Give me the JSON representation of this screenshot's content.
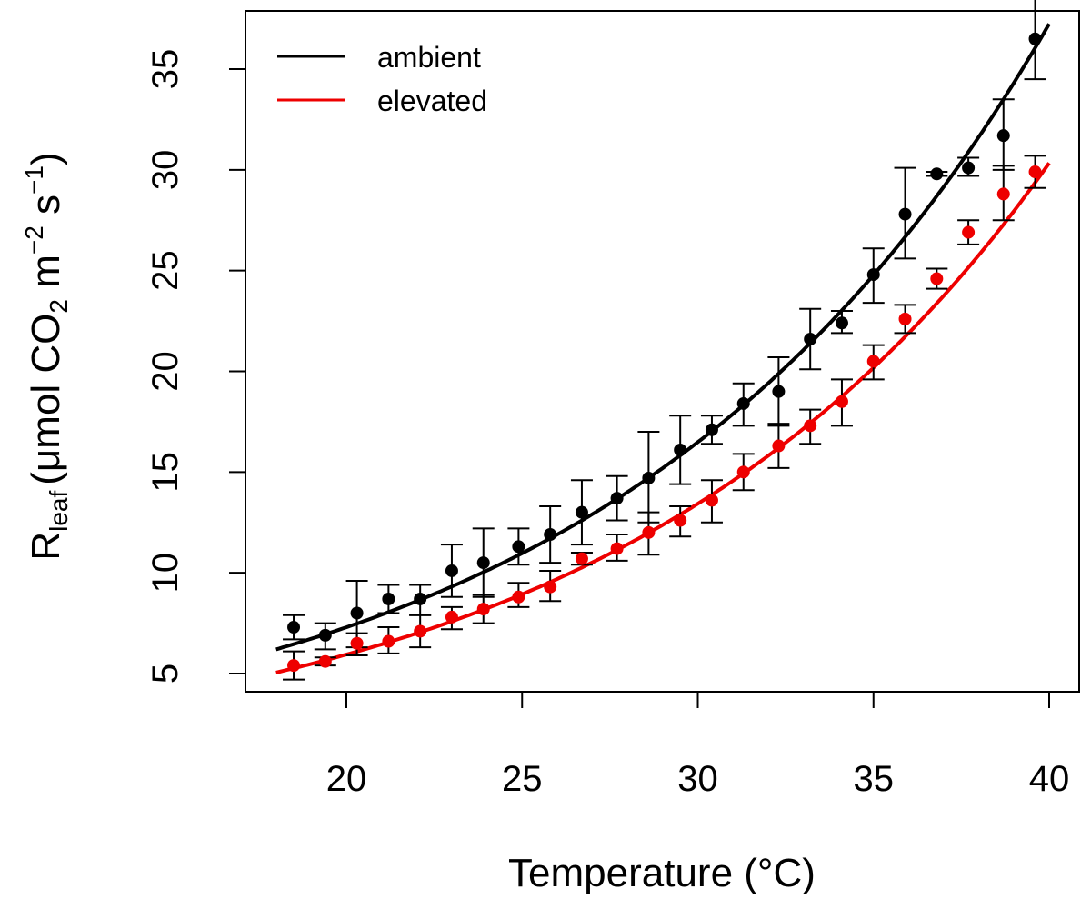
{
  "chart_data": {
    "type": "scatter",
    "xlabel": "Temperature (°C)",
    "ylabel": {
      "main": "R",
      "sub": "leaf",
      "open": "(",
      "text1": "μmol CO",
      "sub2": "2",
      "text2": " m",
      "sup1": "−2",
      "text3": " s",
      "sup2": "−1",
      "close": ")"
    },
    "xlim": [
      18,
      40
    ],
    "ylim": [
      5,
      37
    ],
    "xticks": [
      "20",
      "25",
      "30",
      "35",
      "40"
    ],
    "yticks": [
      "5",
      "10",
      "15",
      "20",
      "25",
      "30",
      "35"
    ],
    "legend": {
      "position": "top-left",
      "entries": [
        "ambient",
        "elevated"
      ]
    },
    "colors": {
      "ambient": "#000000",
      "elevated": "#ee0000"
    },
    "series": [
      {
        "name": "ambient",
        "points": [
          {
            "x": 18.5,
            "y": 7.3,
            "lo": 6.7,
            "hi": 7.9
          },
          {
            "x": 19.4,
            "y": 6.9,
            "lo": 6.2,
            "hi": 7.5
          },
          {
            "x": 20.3,
            "y": 8.0,
            "lo": 6.3,
            "hi": 9.6
          },
          {
            "x": 21.2,
            "y": 8.7,
            "lo": 8.0,
            "hi": 9.4
          },
          {
            "x": 22.1,
            "y": 8.7,
            "lo": 7.9,
            "hi": 9.4
          },
          {
            "x": 23.0,
            "y": 10.1,
            "lo": 8.8,
            "hi": 11.4
          },
          {
            "x": 23.9,
            "y": 10.5,
            "lo": 8.8,
            "hi": 12.2
          },
          {
            "x": 24.9,
            "y": 11.3,
            "lo": 10.4,
            "hi": 12.2
          },
          {
            "x": 25.8,
            "y": 11.9,
            "lo": 10.5,
            "hi": 13.3
          },
          {
            "x": 26.7,
            "y": 13.0,
            "lo": 11.4,
            "hi": 14.6
          },
          {
            "x": 27.7,
            "y": 13.7,
            "lo": 12.6,
            "hi": 14.8
          },
          {
            "x": 28.6,
            "y": 14.7,
            "lo": 12.5,
            "hi": 17.0
          },
          {
            "x": 29.5,
            "y": 16.1,
            "lo": 14.4,
            "hi": 17.8
          },
          {
            "x": 30.4,
            "y": 17.1,
            "lo": 16.4,
            "hi": 17.8
          },
          {
            "x": 31.3,
            "y": 18.4,
            "lo": 17.3,
            "hi": 19.4
          },
          {
            "x": 32.3,
            "y": 19.0,
            "lo": 17.3,
            "hi": 20.7
          },
          {
            "x": 33.2,
            "y": 21.6,
            "lo": 20.1,
            "hi": 23.1
          },
          {
            "x": 34.1,
            "y": 22.4,
            "lo": 21.9,
            "hi": 23.0
          },
          {
            "x": 35.0,
            "y": 24.8,
            "lo": 23.4,
            "hi": 26.1
          },
          {
            "x": 35.9,
            "y": 27.8,
            "lo": 25.6,
            "hi": 30.1
          },
          {
            "x": 36.8,
            "y": 29.8,
            "lo": 29.7,
            "hi": 29.9
          },
          {
            "x": 37.7,
            "y": 30.1,
            "lo": 29.7,
            "hi": 30.6
          },
          {
            "x": 38.7,
            "y": 31.7,
            "lo": 30.0,
            "hi": 33.5
          },
          {
            "x": 39.6,
            "y": 36.5,
            "lo": 34.5,
            "hi": 38.5
          }
        ],
        "fit": {
          "a": 6.2,
          "b": 0.0815
        }
      },
      {
        "name": "elevated",
        "points": [
          {
            "x": 18.5,
            "y": 5.4,
            "lo": 4.7,
            "hi": 6.1
          },
          {
            "x": 19.4,
            "y": 5.6,
            "lo": 5.4,
            "hi": 5.8
          },
          {
            "x": 20.3,
            "y": 6.5,
            "lo": 5.9,
            "hi": 7.0
          },
          {
            "x": 21.2,
            "y": 6.6,
            "lo": 6.0,
            "hi": 7.3
          },
          {
            "x": 22.1,
            "y": 7.1,
            "lo": 6.3,
            "hi": 7.9
          },
          {
            "x": 23.0,
            "y": 7.8,
            "lo": 7.2,
            "hi": 8.3
          },
          {
            "x": 23.9,
            "y": 8.2,
            "lo": 7.5,
            "hi": 8.9
          },
          {
            "x": 24.9,
            "y": 8.8,
            "lo": 8.3,
            "hi": 9.5
          },
          {
            "x": 25.8,
            "y": 9.3,
            "lo": 8.6,
            "hi": 10.1
          },
          {
            "x": 26.7,
            "y": 10.7,
            "lo": 10.4,
            "hi": 11.0
          },
          {
            "x": 27.7,
            "y": 11.2,
            "lo": 10.6,
            "hi": 11.9
          },
          {
            "x": 28.6,
            "y": 12.0,
            "lo": 10.9,
            "hi": 13.0
          },
          {
            "x": 29.5,
            "y": 12.6,
            "lo": 11.8,
            "hi": 13.3
          },
          {
            "x": 30.4,
            "y": 13.6,
            "lo": 12.5,
            "hi": 14.6
          },
          {
            "x": 31.3,
            "y": 15.0,
            "lo": 14.1,
            "hi": 15.9
          },
          {
            "x": 32.3,
            "y": 16.3,
            "lo": 15.2,
            "hi": 17.4
          },
          {
            "x": 33.2,
            "y": 17.3,
            "lo": 16.4,
            "hi": 18.1
          },
          {
            "x": 34.1,
            "y": 18.5,
            "lo": 17.3,
            "hi": 19.6
          },
          {
            "x": 35.0,
            "y": 20.5,
            "lo": 19.6,
            "hi": 21.3
          },
          {
            "x": 35.9,
            "y": 22.6,
            "lo": 21.9,
            "hi": 23.3
          },
          {
            "x": 36.8,
            "y": 24.6,
            "lo": 24.1,
            "hi": 25.1
          },
          {
            "x": 37.7,
            "y": 26.9,
            "lo": 26.3,
            "hi": 27.5
          },
          {
            "x": 38.7,
            "y": 28.8,
            "lo": 27.5,
            "hi": 30.2
          },
          {
            "x": 39.6,
            "y": 29.9,
            "lo": 29.1,
            "hi": 30.7
          }
        ],
        "fit": {
          "a": 5.05,
          "b": 0.0815
        }
      }
    ]
  }
}
